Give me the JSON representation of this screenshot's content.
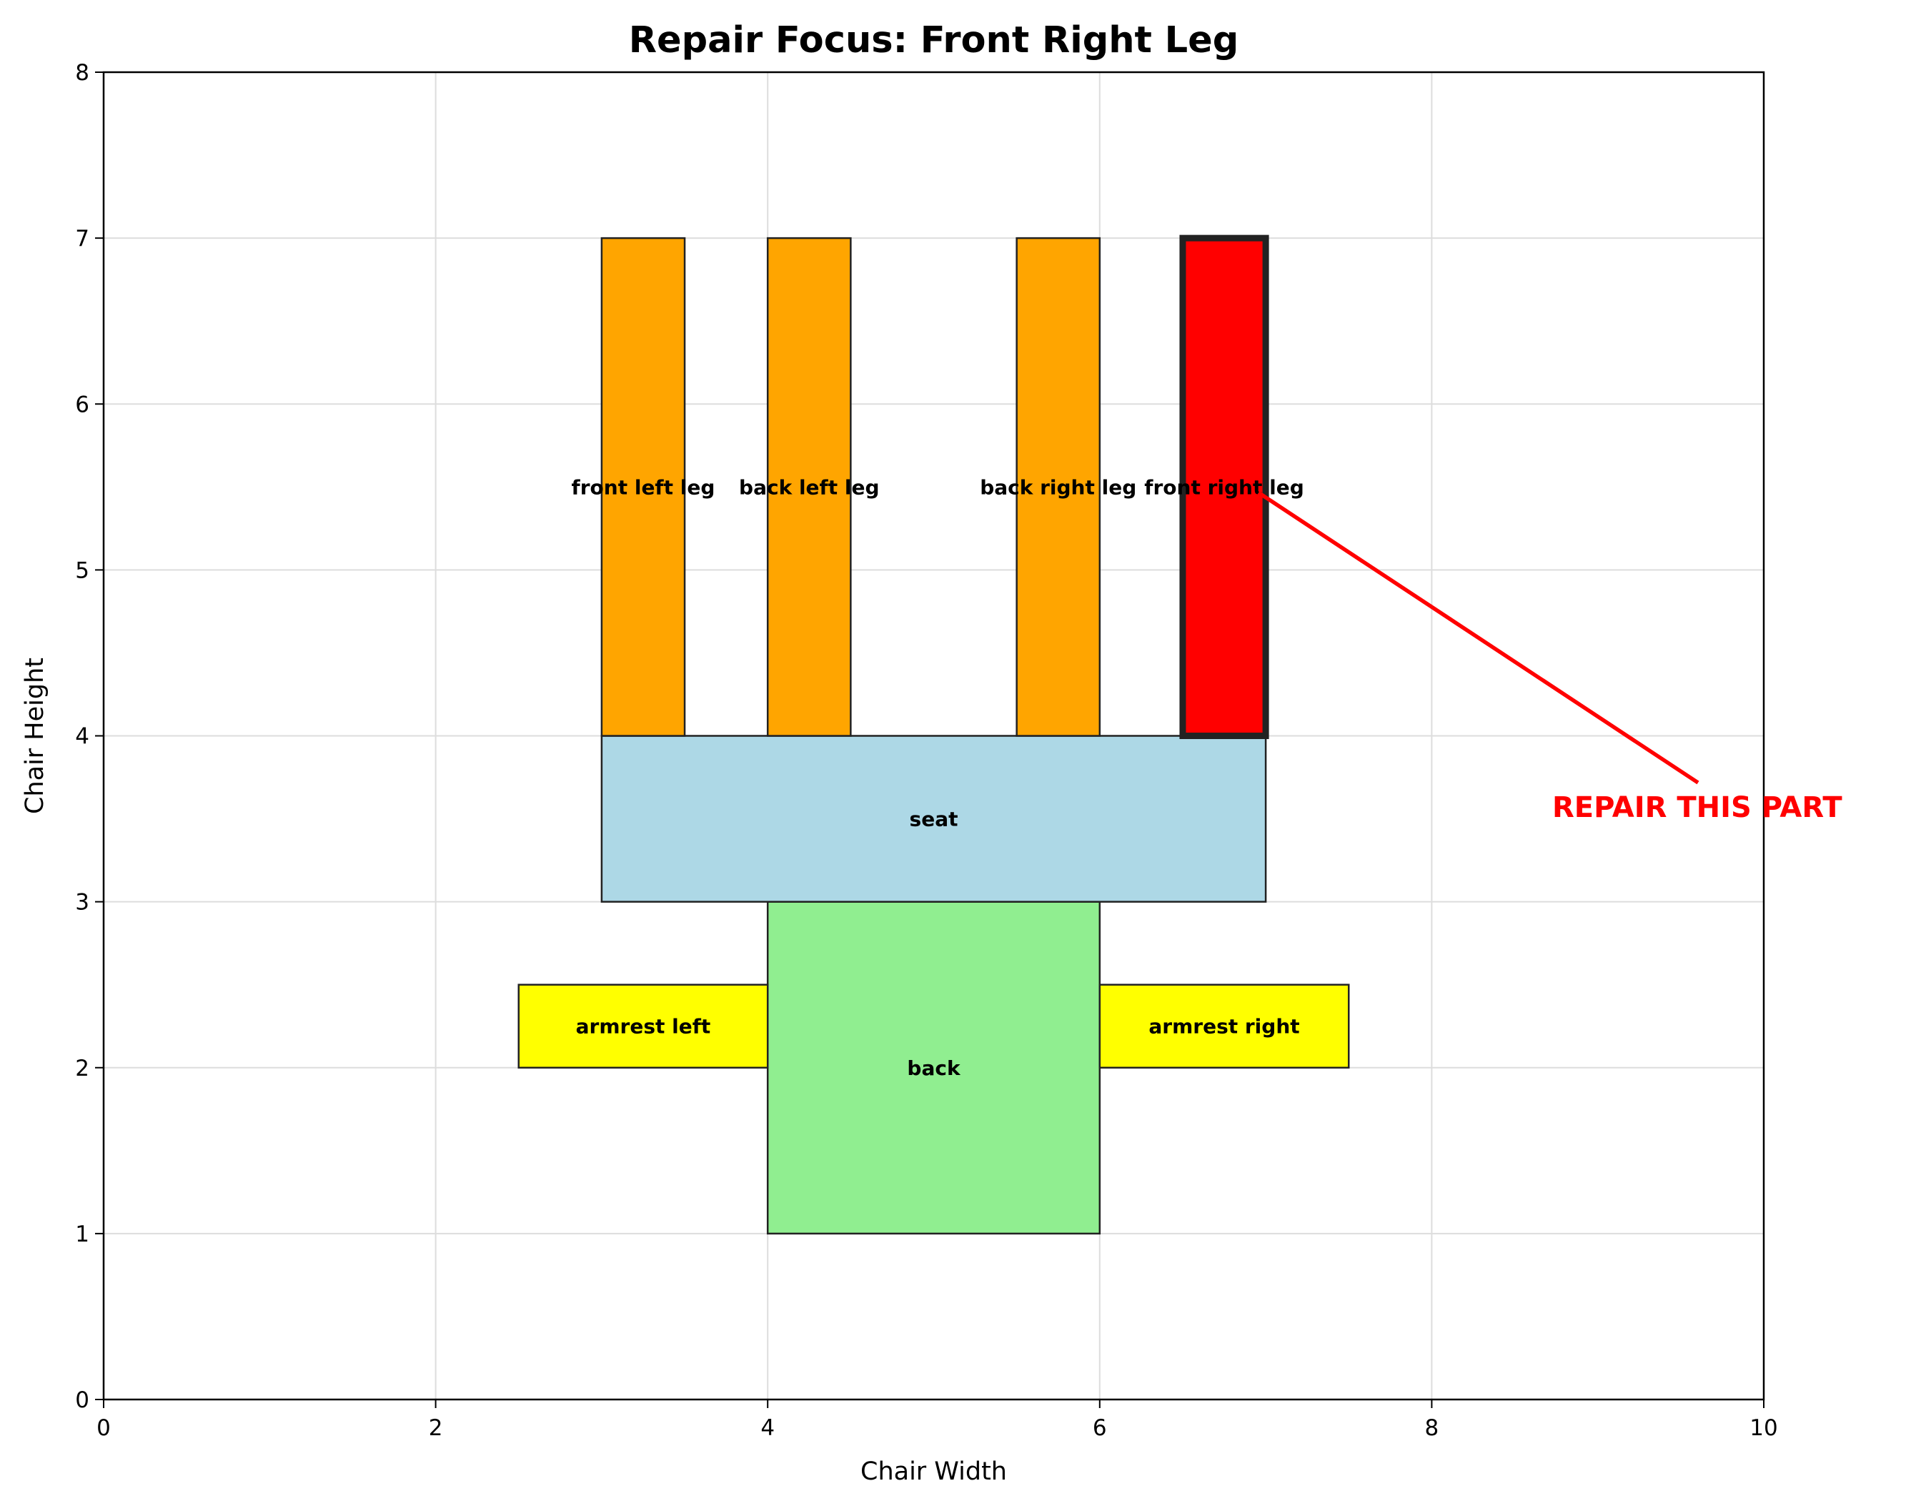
{
  "chart_data": {
    "type": "bar",
    "title": "Repair Focus: Front Right Leg",
    "xlabel": "Chair Width",
    "ylabel": "Chair Height",
    "xlim": [
      0,
      10
    ],
    "ylim": [
      0,
      8
    ],
    "xticks": [
      "0",
      "2",
      "4",
      "6",
      "8",
      "10"
    ],
    "yticks": [
      "0",
      "1",
      "2",
      "3",
      "4",
      "5",
      "6",
      "7",
      "8"
    ],
    "grid": true,
    "parts": [
      {
        "name": "back",
        "x": 4,
        "y": 1,
        "width": 2,
        "height": 2,
        "color": "#90ee90",
        "label_y": 2
      },
      {
        "name": "armrest left",
        "x": 2.5,
        "y": 2,
        "width": 1.5,
        "height": 0.5,
        "color": "#ffff00",
        "label_y": 2.25
      },
      {
        "name": "armrest right",
        "x": 6,
        "y": 2,
        "width": 1.5,
        "height": 0.5,
        "color": "#ffff00",
        "label_y": 2.25
      },
      {
        "name": "seat",
        "x": 3,
        "y": 3,
        "width": 4,
        "height": 1,
        "color": "#add8e6",
        "label_y": 3.5
      },
      {
        "name": "front left leg",
        "x": 3,
        "y": 4,
        "width": 0.5,
        "height": 3,
        "color": "#ffa500",
        "label_y": 5.5
      },
      {
        "name": "back left leg",
        "x": 4,
        "y": 4,
        "width": 0.5,
        "height": 3,
        "color": "#ffa500",
        "label_y": 5.5
      },
      {
        "name": "back right leg",
        "x": 5.5,
        "y": 4,
        "width": 0.5,
        "height": 3,
        "color": "#ffa500",
        "label_y": 5.5
      },
      {
        "name": "front right leg",
        "x": 6.5,
        "y": 4,
        "width": 0.5,
        "height": 3,
        "color": "#ff0000",
        "label_y": 5.5,
        "highlighted": true
      }
    ],
    "annotation": {
      "text": "REPAIR THIS PART",
      "color": "#ff0000",
      "target": [
        7,
        5.5
      ],
      "text_position": [
        10,
        3.5
      ]
    }
  }
}
